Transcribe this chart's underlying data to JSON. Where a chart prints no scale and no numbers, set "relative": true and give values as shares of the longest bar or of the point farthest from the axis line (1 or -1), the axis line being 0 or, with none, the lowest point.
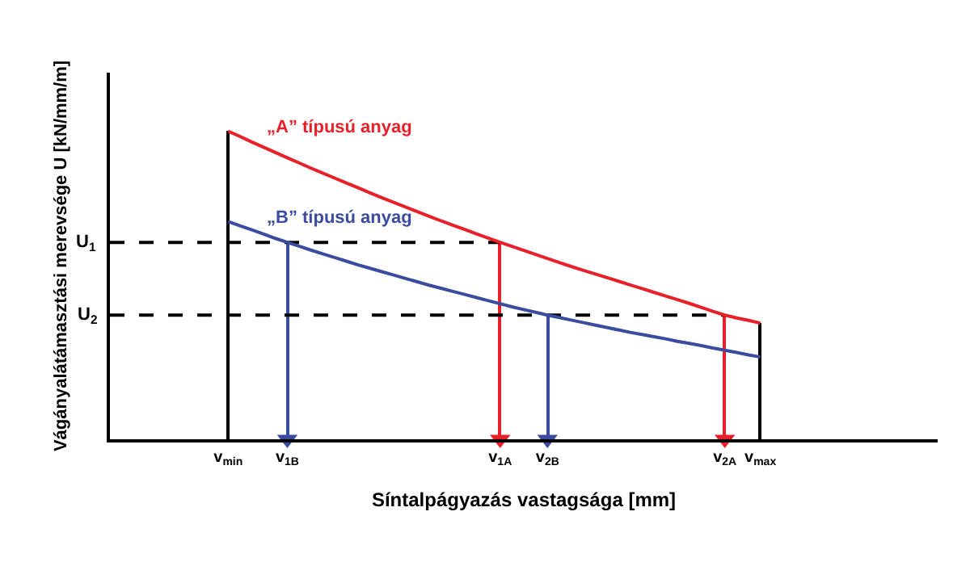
{
  "chart_data": {
    "type": "line",
    "relative": true,
    "xlabel": "Síntalpágyazás vastagsága [mm]",
    "ylabel": "Vágányalátámasztási merevsége U [kN/mm/m]",
    "categories": [
      null,
      null,
      null,
      null,
      null,
      null,
      null,
      null,
      null,
      null,
      "v$_{min}$",
      null,
      null,
      null,
      null,
      "v$_{1B}$",
      null,
      null,
      null,
      null,
      null,
      null,
      null,
      null,
      null,
      null,
      null,
      null,
      null,
      null,
      null,
      null,
      null,
      "v$_{1A}$",
      null,
      null,
      null,
      "v$_{2B}$",
      null,
      null,
      null,
      null,
      null,
      null,
      null,
      null,
      null,
      null,
      null,
      null,
      null,
      null,
      "v$_{2A}$",
      null,
      null,
      "v$_{max}$",
      null,
      null,
      null,
      null,
      null,
      null,
      null,
      null,
      null,
      null,
      null,
      null,
      null,
      null,
      null
    ],
    "legend": false,
    "marker": "none",
    "series": [
      {
        "type": "bar",
        "colors": [
          null,
          null,
          null,
          null,
          null,
          null,
          null,
          null,
          null,
          null,
          "#000000",
          null,
          null,
          null,
          null,
          "#3a4ba0",
          null,
          null,
          null,
          null,
          null,
          null,
          null,
          null,
          null,
          null,
          null,
          null,
          null,
          null,
          null,
          null,
          null,
          "#e8202a",
          null,
          null,
          null,
          "#3a4ba0",
          null,
          null,
          null,
          null,
          null,
          null,
          null,
          null,
          null,
          null,
          null,
          null,
          null,
          null,
          "#e8202a",
          null,
          null,
          "#000000",
          null,
          null,
          null,
          null,
          null,
          null,
          null,
          null,
          null,
          null,
          null,
          null,
          null,
          null,
          null
        ],
        "values": [
          null,
          null,
          null,
          null,
          null,
          null,
          null,
          null,
          null,
          null,
          1.0,
          null,
          null,
          null,
          null,
          0.639,
          null,
          null,
          null,
          null,
          null,
          null,
          null,
          null,
          null,
          null,
          null,
          null,
          null,
          null,
          null,
          null,
          null,
          0.639,
          null,
          null,
          null,
          0.403,
          null,
          null,
          null,
          null,
          null,
          null,
          null,
          null,
          null,
          null,
          null,
          null,
          null,
          null,
          0.403,
          null,
          null,
          0.377,
          null,
          null,
          null,
          null,
          null,
          null,
          null,
          null,
          null,
          null,
          null,
          null,
          null,
          null,
          null
        ]
      },
      {
        "type": "scatter",
        "marker": "triangle",
        "colors": [
          null,
          null,
          null,
          null,
          null,
          null,
          null,
          null,
          null,
          null,
          null,
          null,
          null,
          null,
          null,
          "#3a4ba0",
          null,
          null,
          null,
          null,
          null,
          null,
          null,
          null,
          null,
          null,
          null,
          null,
          null,
          null,
          null,
          null,
          null,
          "#e8202a",
          null,
          null,
          null,
          "#3a4ba0",
          null,
          null,
          null,
          null,
          null,
          null,
          null,
          null,
          null,
          null,
          null,
          null,
          null,
          null,
          "#e8202a",
          null,
          null,
          null,
          null,
          null,
          null,
          null,
          null,
          null,
          null,
          null,
          null,
          null,
          null,
          null,
          null,
          null,
          null
        ],
        "values": [
          null,
          null,
          null,
          null,
          null,
          null,
          null,
          null,
          null,
          null,
          null,
          null,
          null,
          null,
          null,
          0,
          null,
          null,
          null,
          null,
          null,
          null,
          null,
          null,
          null,
          null,
          null,
          null,
          null,
          null,
          null,
          null,
          null,
          0,
          null,
          null,
          null,
          0,
          null,
          null,
          null,
          null,
          null,
          null,
          null,
          null,
          null,
          null,
          null,
          null,
          null,
          null,
          0,
          null,
          null,
          null,
          null,
          null,
          null,
          null,
          null,
          null,
          null,
          null,
          null,
          null,
          null,
          null,
          null,
          null,
          null
        ]
      },
      {
        "color": "#000000",
        "line_style": "dashed",
        "values": [
          0.639,
          0.639,
          0.639,
          0.639,
          0.639,
          0.639,
          0.639,
          0.639,
          0.639,
          0.639,
          0.639,
          0.639,
          0.639,
          0.639,
          0.639,
          0.639,
          0.639,
          0.639,
          0.639,
          0.639,
          0.639,
          0.639,
          0.639,
          0.639,
          0.639,
          0.639,
          0.639,
          0.639,
          0.639,
          0.639,
          0.639,
          0.639,
          0.639,
          0.639,
          null,
          null,
          null,
          null,
          null,
          null,
          null,
          null,
          null,
          null,
          null,
          null,
          null,
          null,
          null,
          null,
          null,
          null,
          null,
          null,
          null,
          null,
          null,
          null,
          null,
          null,
          null,
          null,
          null,
          null,
          null,
          null,
          null,
          null,
          null,
          null,
          null
        ]
      },
      {
        "color": "#000000",
        "line_style": "dashed",
        "values": [
          0.403,
          0.403,
          0.403,
          0.403,
          0.403,
          0.403,
          0.403,
          0.403,
          0.403,
          0.403,
          0.403,
          0.403,
          0.403,
          0.403,
          0.403,
          0.403,
          0.403,
          0.403,
          0.403,
          0.403,
          0.403,
          0.403,
          0.403,
          0.403,
          0.403,
          0.403,
          0.403,
          0.403,
          0.403,
          0.403,
          0.403,
          0.403,
          0.403,
          0.403,
          0.403,
          0.403,
          0.403,
          0.403,
          0.403,
          0.403,
          0.403,
          0.403,
          0.403,
          0.403,
          0.403,
          0.403,
          0.403,
          0.403,
          0.403,
          0.403,
          0.403,
          0.403,
          0.403,
          null,
          null,
          null,
          null,
          null,
          null,
          null,
          null,
          null,
          null,
          null,
          null,
          null,
          null,
          null,
          null,
          null,
          null
        ]
      },
      {
        "name": "„A” típusú anyag",
        "color": "#e8202a",
        "values": [
          null,
          null,
          null,
          null,
          null,
          null,
          null,
          null,
          null,
          null,
          1.0,
          0.983,
          0.965,
          0.948,
          0.931,
          0.914,
          0.897,
          0.88,
          0.864,
          0.848,
          0.832,
          0.816,
          0.8,
          0.784,
          0.769,
          0.754,
          0.739,
          0.724,
          0.709,
          0.695,
          0.681,
          0.667,
          0.653,
          0.639,
          0.626,
          0.613,
          0.6,
          0.587,
          0.574,
          0.561,
          0.549,
          0.537,
          0.525,
          0.513,
          0.501,
          0.489,
          0.477,
          0.465,
          0.453,
          0.441,
          0.428,
          0.415,
          0.403,
          0.394,
          0.386,
          0.377,
          null,
          null,
          null,
          null,
          null,
          null,
          null,
          null,
          null,
          null,
          null,
          null,
          null,
          null,
          null
        ]
      },
      {
        "name": "„B” típusú anyag",
        "color": "#3a4ba0",
        "values": [
          null,
          null,
          null,
          null,
          null,
          null,
          null,
          null,
          null,
          null,
          0.707,
          0.693,
          0.68,
          0.666,
          0.652,
          0.639,
          0.627,
          0.614,
          0.602,
          0.59,
          0.578,
          0.566,
          0.555,
          0.544,
          0.533,
          0.522,
          0.511,
          0.5,
          0.49,
          0.48,
          0.47,
          0.46,
          0.45,
          0.44,
          0.43,
          0.421,
          0.412,
          0.403,
          0.395,
          0.387,
          0.379,
          0.371,
          0.363,
          0.355,
          0.347,
          0.34,
          0.333,
          0.326,
          0.318,
          0.311,
          0.304,
          0.296,
          0.289,
          0.282,
          0.274,
          0.267,
          null,
          null,
          null,
          null,
          null,
          null,
          null,
          null,
          null,
          null,
          null,
          null,
          null,
          null,
          null
        ]
      }
    ],
    "annotations": [
      "U$_{1}$",
      "U$_{2}$"
    ]
  }
}
